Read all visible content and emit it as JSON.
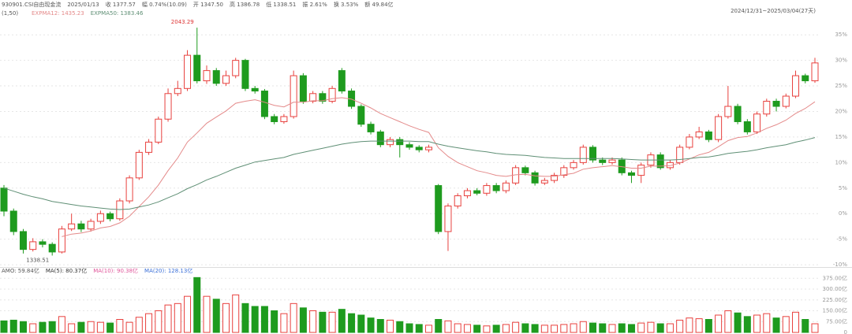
{
  "chart_data": [
    {
      "type": "candlestick",
      "info": [
        "930901.CSI自由现金流",
        "2025/01/13",
        "收 1377.57",
        "幅 0.74%(10.09)",
        "开 1347.50",
        "高 1386.78",
        "低 1338.51",
        "振 2.61%",
        "换 3.53%",
        "额 49.84亿"
      ],
      "range": "2024/12/31~2025/03/04(27天)",
      "legend": [
        "(1,50)"
      ],
      "up_color": "#e8413e",
      "down_color": "#1e9b1e",
      "max_label": "2043.29",
      "min_label": "1338.51",
      "open": [
        5,
        0.5,
        -3.5,
        -7,
        -5.5,
        -6,
        -7.5,
        -3,
        -2,
        -3,
        -1.5,
        0,
        -1,
        2.5,
        7,
        12,
        14,
        18.5,
        23.5,
        24.5,
        31,
        26,
        28,
        25.5,
        27,
        30,
        24.5,
        24,
        19,
        18,
        19,
        27,
        22,
        23.5,
        22,
        28,
        24,
        21,
        17.5,
        16,
        13.5,
        14.5,
        13.5,
        13,
        12.5,
        5.5,
        -3.5,
        1.5,
        3.5,
        4.5,
        4,
        5.5,
        4.5,
        6,
        9,
        8,
        6,
        6.5,
        7.5,
        9,
        10,
        13,
        10.5,
        10,
        10.5,
        8,
        7.5,
        9.5,
        11.5,
        9,
        10,
        13,
        15,
        16,
        14.5,
        19,
        21,
        18,
        16,
        19.5,
        22,
        21,
        23,
        27,
        26
      ],
      "high": [
        5.6,
        1,
        -3,
        -4.8,
        -5,
        -5.6,
        -2.4,
        0,
        -1.4,
        -1,
        0.6,
        0.4,
        3,
        7.5,
        12.5,
        14.6,
        19,
        24.5,
        26,
        32,
        36.4,
        29,
        28.5,
        28,
        30.5,
        30.3,
        25,
        24.4,
        19.5,
        19.5,
        28,
        27.5,
        24,
        24,
        25,
        28.5,
        24.5,
        21.4,
        18,
        16.4,
        15,
        15,
        14,
        13.4,
        13.5,
        5.8,
        2,
        4,
        5,
        5,
        6,
        6,
        6.5,
        9.5,
        9.4,
        8.4,
        7,
        8,
        9.5,
        10.5,
        13.5,
        13.4,
        11,
        11,
        11,
        8.4,
        10,
        12,
        12,
        10.5,
        13.5,
        15.6,
        17,
        16.4,
        19.5,
        25,
        21.5,
        18.5,
        20,
        22.5,
        22.5,
        23.5,
        28,
        27.4,
        30.5
      ],
      "low": [
        -0.5,
        -4.2,
        -7.8,
        -7.4,
        -6.6,
        -8.2,
        -7.8,
        -3.4,
        -3.6,
        -3.5,
        -2,
        -1.5,
        -1.4,
        2,
        6.6,
        11.5,
        13.6,
        18,
        23,
        24,
        25.5,
        25.4,
        25,
        25,
        26.5,
        24,
        23.5,
        18.5,
        17.5,
        17.6,
        18.6,
        21.5,
        21.6,
        21.5,
        21.6,
        23.5,
        20.5,
        17,
        15.5,
        13,
        13,
        11,
        12.5,
        12,
        12,
        -4,
        -7.3,
        1,
        3,
        3.6,
        3.5,
        4,
        4,
        5.6,
        7.5,
        5.5,
        5.6,
        6,
        7,
        8.6,
        9.6,
        10,
        9.5,
        9.6,
        7.5,
        6,
        6,
        9,
        8.6,
        8.6,
        9.6,
        12.6,
        14.6,
        14,
        14,
        18.6,
        17.5,
        15.5,
        15.6,
        19,
        20,
        20.6,
        22.6,
        25.5,
        25.6
      ],
      "close": [
        0.5,
        -3.5,
        -7,
        -5.5,
        -6,
        -7.5,
        -3,
        -2,
        -3,
        -1.5,
        0,
        -1,
        2.5,
        7,
        12,
        14,
        18.5,
        23.5,
        24.5,
        31,
        26,
        28,
        25.5,
        27,
        30,
        24.5,
        24,
        19,
        18,
        19,
        27,
        22,
        23.5,
        22,
        24.5,
        24,
        21,
        17.5,
        16,
        13.5,
        14.5,
        13.5,
        13,
        12.5,
        13,
        -3.5,
        1.5,
        3.5,
        4.5,
        4,
        5.5,
        4.5,
        6,
        9,
        8,
        6,
        6.5,
        7.5,
        9,
        10,
        13,
        10.5,
        10,
        10.5,
        8,
        7.5,
        9.5,
        11.5,
        9,
        10,
        13,
        15,
        16,
        14.5,
        19,
        21,
        18,
        16,
        19.5,
        22,
        21,
        23,
        27,
        26,
        29.5
      ],
      "series": [
        {
          "name": "EXPMA12: 1435.23",
          "color": "#e48a8a",
          "values": [
            null,
            null,
            null,
            null,
            null,
            null,
            -4.5,
            -4,
            -3.8,
            -3.4,
            -2.8,
            -2.5,
            -1.8,
            -0.5,
            1.4,
            3.3,
            5.6,
            8.4,
            10.9,
            14,
            15.8,
            17.7,
            18.9,
            20.1,
            21.6,
            22,
            22.3,
            21.8,
            21.2,
            20.9,
            21.8,
            21.8,
            22.1,
            22.1,
            22.5,
            22.7,
            22.4,
            21.6,
            20.7,
            19.6,
            18.8,
            18,
            17.2,
            16.5,
            15.9,
            12.9,
            11.2,
            10,
            9.2,
            8.4,
            8,
            7.5,
            7.3,
            7.6,
            7.7,
            7.4,
            7.3,
            7.3,
            7.6,
            7.9,
            8.7,
            9,
            9.2,
            9.4,
            9.2,
            8.9,
            8.9,
            9.3,
            9.3,
            9.4,
            9.9,
            10.7,
            11.5,
            12,
            13.1,
            14.3,
            14.9,
            15.1,
            15.8,
            16.7,
            17.4,
            18.3,
            19.6,
            20.6,
            21.9
          ]
        },
        {
          "name": "EXPMA50: 1383.46",
          "color": "#5f8f75",
          "values": [
            5,
            4.4,
            3.8,
            3.3,
            2.9,
            2.4,
            2.1,
            1.8,
            1.5,
            1.3,
            1.1,
            0.9,
            0.8,
            0.9,
            1.3,
            1.7,
            2.3,
            3.1,
            3.9,
            4.9,
            5.7,
            6.6,
            7.3,
            8.1,
            8.9,
            9.5,
            10.1,
            10.4,
            10.7,
            11,
            11.6,
            12,
            12.4,
            12.8,
            13.2,
            13.6,
            13.9,
            14.1,
            14.2,
            14.2,
            14.2,
            14.2,
            14.2,
            14.1,
            14.1,
            13.6,
            13.2,
            12.9,
            12.6,
            12.3,
            12.1,
            11.8,
            11.6,
            11.5,
            11.4,
            11.2,
            11,
            10.9,
            10.8,
            10.8,
            10.8,
            10.8,
            10.8,
            10.8,
            10.7,
            10.6,
            10.5,
            10.5,
            10.5,
            10.5,
            10.6,
            10.8,
            11,
            11.1,
            11.4,
            11.8,
            12,
            12.2,
            12.5,
            12.9,
            13.2,
            13.5,
            14,
            14.4,
            14.9
          ]
        }
      ],
      "ylim": [
        -10.6,
        39.5
      ],
      "yticks": [
        {
          "value": 35,
          "label": "35%"
        },
        {
          "value": 30,
          "label": "30%"
        },
        {
          "value": 25,
          "label": "25%"
        },
        {
          "value": 20,
          "label": "20%"
        },
        {
          "value": 15,
          "label": "15%"
        },
        {
          "value": 10,
          "label": "10%"
        },
        {
          "value": 5,
          "label": "5%"
        },
        {
          "value": 0,
          "label": "0%"
        },
        {
          "value": -5,
          "label": "-5%"
        },
        {
          "value": -10,
          "label": "-10%"
        }
      ],
      "grid": true
    },
    {
      "type": "volume",
      "legend": [
        "AMO: 59.84亿",
        "MA(5): 80.37亿",
        "MA(10): 90.38亿",
        "MA(20): 128.13亿"
      ],
      "legend_colors": [
        "#555555",
        "#333333",
        "#e0559a",
        "#3a6fd8"
      ],
      "values": [
        80,
        85,
        75,
        60,
        70,
        75,
        110,
        60,
        70,
        75,
        70,
        65,
        90,
        70,
        105,
        130,
        150,
        190,
        200,
        250,
        380,
        250,
        230,
        200,
        260,
        200,
        180,
        180,
        150,
        130,
        200,
        170,
        150,
        140,
        140,
        160,
        130,
        120,
        100,
        90,
        85,
        75,
        60,
        55,
        50,
        90,
        80,
        60,
        55,
        50,
        45,
        50,
        55,
        70,
        60,
        55,
        50,
        50,
        55,
        60,
        75,
        65,
        60,
        55,
        60,
        55,
        65,
        70,
        60,
        60,
        85,
        100,
        95,
        90,
        120,
        150,
        135,
        110,
        120,
        130,
        100,
        110,
        140,
        90,
        60
      ],
      "ylim": [
        0,
        420
      ],
      "yticks": [
        {
          "value": 375,
          "label": "375.00亿"
        },
        {
          "value": 300,
          "label": "300.00亿"
        },
        {
          "value": 225,
          "label": "225.00亿"
        },
        {
          "value": 150,
          "label": "150.00亿"
        },
        {
          "value": 75,
          "label": "75.00亿"
        },
        0
      ],
      "grid": true
    }
  ]
}
